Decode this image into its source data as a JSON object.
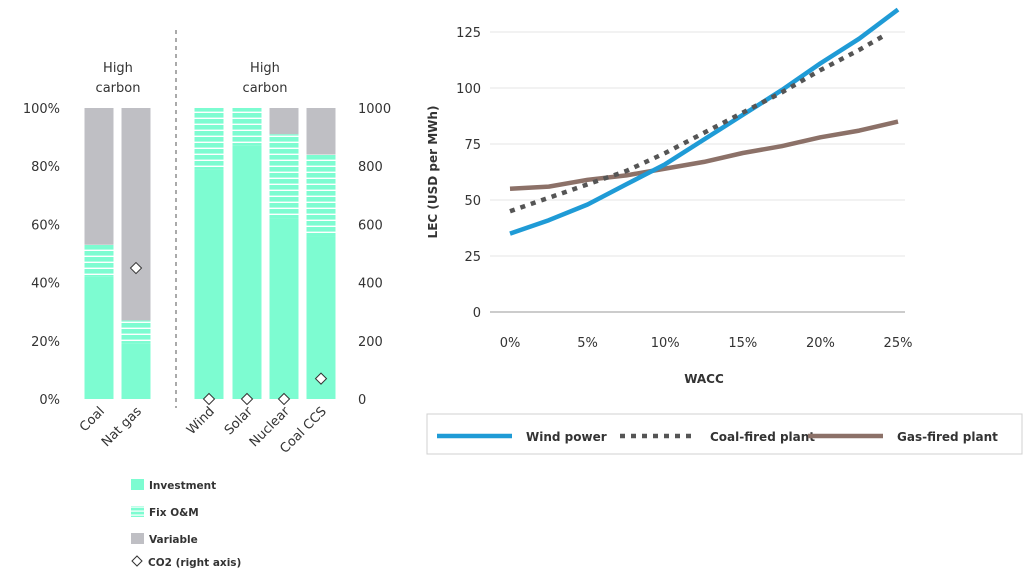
{
  "colors": {
    "investment": "#7dfcd1",
    "fix_om": "#7dfcd1",
    "variable": "#bfbfc4",
    "wind": "#1f9bd6",
    "coal": "#555555",
    "gas": "#8c7168",
    "grid": "#e6e6e6",
    "axis": "#999999",
    "text": "#333333"
  },
  "chart_data": [
    {
      "type": "bar",
      "stacked": true,
      "groups": [
        {
          "label": "High carbon",
          "categories": [
            "Coal",
            "Nat gas"
          ]
        },
        {
          "label": "High carbon",
          "categories": [
            "Wind",
            "Solar",
            "Nuclear",
            "Coal CCS"
          ]
        }
      ],
      "categories": [
        "Coal",
        "Nat gas",
        "Wind",
        "Solar",
        "Nuclear",
        "Coal CCS"
      ],
      "series": [
        {
          "name": "Investment",
          "values": [
            42,
            19,
            79,
            87,
            62,
            56
          ]
        },
        {
          "name": "Fix O&M",
          "values": [
            11,
            8,
            21,
            13,
            29,
            28
          ]
        },
        {
          "name": "Variable",
          "values": [
            47,
            73,
            0,
            0,
            9,
            16
          ]
        }
      ],
      "co2_series": {
        "name": "CO2 (right axis)",
        "values": [
          null,
          450,
          0,
          0,
          0,
          70
        ]
      },
      "left_axis": {
        "ticks": [
          "0%",
          "20%",
          "40%",
          "60%",
          "80%",
          "100%"
        ],
        "ylim": [
          0,
          100
        ]
      },
      "right_axis": {
        "ticks": [
          "0",
          "200",
          "400",
          "600",
          "800",
          "1000"
        ],
        "ylim": [
          0,
          1000
        ]
      },
      "legend": [
        {
          "name": "Investment",
          "kind": "solid"
        },
        {
          "name": "Fix O&M",
          "kind": "striped"
        },
        {
          "name": "Variable",
          "kind": "grey"
        },
        {
          "name": "CO2 (right axis)",
          "kind": "diamond"
        }
      ]
    },
    {
      "type": "line",
      "xlabel": "WACC",
      "ylabel": "LEC (USD per MWh)",
      "x_ticks": [
        "0%",
        "5%",
        "10%",
        "15%",
        "20%",
        "25%"
      ],
      "y_ticks": [
        "0",
        "25",
        "50",
        "75",
        "100",
        "125"
      ],
      "xlim": [
        0,
        25
      ],
      "ylim": [
        0,
        135
      ],
      "grid": true,
      "legend_position": "bottom",
      "series": [
        {
          "name": "Wind power",
          "style": "solid",
          "x": [
            0,
            2.5,
            5,
            7.5,
            10,
            12.5,
            15,
            17.5,
            20,
            22.5,
            25
          ],
          "y": [
            35,
            41,
            48,
            57,
            66,
            77,
            88,
            99,
            111,
            122,
            135
          ]
        },
        {
          "name": "Coal-fired plant",
          "style": "dotted",
          "x": [
            0,
            2.5,
            5,
            7.5,
            10,
            12.5,
            15,
            17.5,
            20,
            22.5,
            24
          ],
          "y": [
            45,
            51,
            57,
            63,
            71,
            80,
            89,
            98,
            108,
            117,
            123
          ]
        },
        {
          "name": "Gas-fired plant",
          "style": "solid",
          "x": [
            0,
            2.5,
            5,
            7.5,
            10,
            12.5,
            15,
            17.5,
            20,
            22.5,
            25
          ],
          "y": [
            55,
            56,
            59,
            61,
            64,
            67,
            71,
            74,
            78,
            81,
            85
          ]
        }
      ]
    }
  ]
}
